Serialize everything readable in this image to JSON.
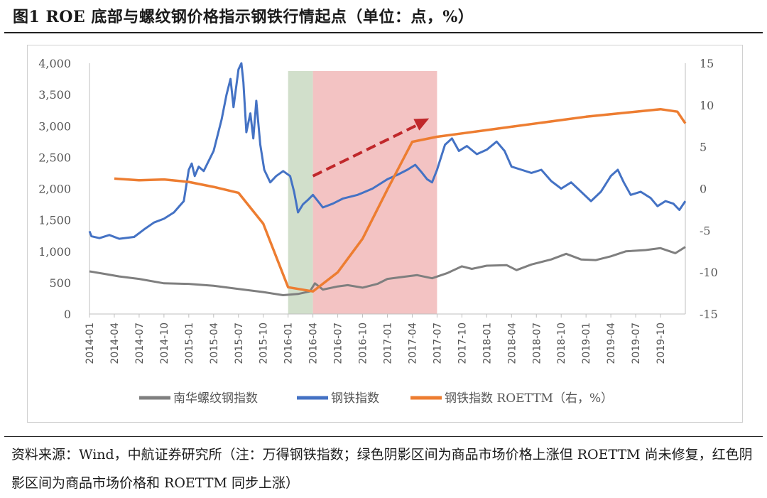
{
  "figure": {
    "title": "图1  ROE 底部与螺纹钢价格指示钢铁行情起点（单位：点，%）",
    "source": "资料来源：Wind，中航证券研究所（注：万得钢铁指数；绿色阴影区间为商品市场价格上涨但 ROETTM 尚未修复，红色阴影区间为商品市场价格和 ROETTM 同步上涨）"
  },
  "chart_data": {
    "type": "line",
    "x_ticks": [
      "2014-01",
      "2014-04",
      "2014-07",
      "2014-10",
      "2015-01",
      "2015-04",
      "2015-07",
      "2015-10",
      "2016-01",
      "2016-04",
      "2016-07",
      "2016-10",
      "2017-01",
      "2017-04",
      "2017-07",
      "2017-10",
      "2018-01",
      "2018-04",
      "2018-07",
      "2018-10",
      "2019-01",
      "2019-04",
      "2019-07",
      "2019-10"
    ],
    "y_left": {
      "ticks": [
        "0",
        "500",
        "1,000",
        "1,500",
        "2,000",
        "2,500",
        "3,000",
        "3,500",
        "4,000"
      ],
      "range": [
        0,
        4000
      ]
    },
    "y_right": {
      "ticks": [
        "-15",
        "-10",
        "-5",
        "0",
        "5",
        "10",
        "15"
      ],
      "range": [
        -15,
        15
      ]
    },
    "x_range": [
      2014.0,
      2020.0
    ],
    "shaded_regions": [
      {
        "from": 2016.0,
        "to": 2016.25,
        "color": "#c9d9c2"
      },
      {
        "from": 2016.25,
        "to": 2017.5,
        "color": "#f1b8b8"
      }
    ],
    "arrow": {
      "from": [
        2016.25,
        1.5
      ],
      "to": [
        2017.42,
        8.4
      ],
      "color": "#c0282b",
      "axis": "right"
    },
    "series": [
      {
        "name": "南华螺纹钢指数",
        "axis": "left",
        "color": "#7f7f7f",
        "points": [
          [
            2014.0,
            680
          ],
          [
            2014.15,
            640
          ],
          [
            2014.3,
            600
          ],
          [
            2014.5,
            560
          ],
          [
            2014.75,
            490
          ],
          [
            2015.0,
            480
          ],
          [
            2015.25,
            450
          ],
          [
            2015.5,
            400
          ],
          [
            2015.75,
            350
          ],
          [
            2015.95,
            300
          ],
          [
            2016.1,
            320
          ],
          [
            2016.22,
            360
          ],
          [
            2016.27,
            490
          ],
          [
            2016.35,
            390
          ],
          [
            2016.5,
            440
          ],
          [
            2016.6,
            460
          ],
          [
            2016.75,
            420
          ],
          [
            2016.9,
            480
          ],
          [
            2017.0,
            560
          ],
          [
            2017.15,
            590
          ],
          [
            2017.3,
            620
          ],
          [
            2017.45,
            570
          ],
          [
            2017.6,
            650
          ],
          [
            2017.75,
            760
          ],
          [
            2017.85,
            720
          ],
          [
            2018.0,
            770
          ],
          [
            2018.2,
            780
          ],
          [
            2018.3,
            700
          ],
          [
            2018.45,
            790
          ],
          [
            2018.65,
            870
          ],
          [
            2018.8,
            960
          ],
          [
            2018.95,
            870
          ],
          [
            2019.1,
            860
          ],
          [
            2019.25,
            920
          ],
          [
            2019.4,
            1000
          ],
          [
            2019.6,
            1020
          ],
          [
            2019.75,
            1050
          ],
          [
            2019.9,
            970
          ],
          [
            2020.0,
            1070
          ]
        ]
      },
      {
        "name": "钢铁指数",
        "axis": "left",
        "color": "#4472c4",
        "points": [
          [
            2014.0,
            1320
          ],
          [
            2014.02,
            1240
          ],
          [
            2014.1,
            1210
          ],
          [
            2014.2,
            1260
          ],
          [
            2014.3,
            1200
          ],
          [
            2014.45,
            1230
          ],
          [
            2014.55,
            1350
          ],
          [
            2014.65,
            1460
          ],
          [
            2014.75,
            1520
          ],
          [
            2014.85,
            1620
          ],
          [
            2014.95,
            1800
          ],
          [
            2015.0,
            2300
          ],
          [
            2015.03,
            2400
          ],
          [
            2015.06,
            2200
          ],
          [
            2015.1,
            2350
          ],
          [
            2015.15,
            2280
          ],
          [
            2015.25,
            2600
          ],
          [
            2015.33,
            3100
          ],
          [
            2015.38,
            3500
          ],
          [
            2015.42,
            3750
          ],
          [
            2015.45,
            3300
          ],
          [
            2015.5,
            3900
          ],
          [
            2015.53,
            4000
          ],
          [
            2015.55,
            3700
          ],
          [
            2015.58,
            2900
          ],
          [
            2015.62,
            3200
          ],
          [
            2015.65,
            2800
          ],
          [
            2015.68,
            3400
          ],
          [
            2015.72,
            2700
          ],
          [
            2015.76,
            2300
          ],
          [
            2015.82,
            2100
          ],
          [
            2015.88,
            2200
          ],
          [
            2015.95,
            2280
          ],
          [
            2016.02,
            2200
          ],
          [
            2016.06,
            1950
          ],
          [
            2016.1,
            1620
          ],
          [
            2016.15,
            1750
          ],
          [
            2016.2,
            1820
          ],
          [
            2016.25,
            1900
          ],
          [
            2016.3,
            1800
          ],
          [
            2016.35,
            1700
          ],
          [
            2016.45,
            1760
          ],
          [
            2016.55,
            1840
          ],
          [
            2016.7,
            1900
          ],
          [
            2016.85,
            2000
          ],
          [
            2017.0,
            2150
          ],
          [
            2017.1,
            2220
          ],
          [
            2017.2,
            2300
          ],
          [
            2017.28,
            2380
          ],
          [
            2017.35,
            2250
          ],
          [
            2017.4,
            2150
          ],
          [
            2017.45,
            2100
          ],
          [
            2017.5,
            2300
          ],
          [
            2017.58,
            2700
          ],
          [
            2017.65,
            2800
          ],
          [
            2017.72,
            2600
          ],
          [
            2017.8,
            2680
          ],
          [
            2017.9,
            2550
          ],
          [
            2018.0,
            2620
          ],
          [
            2018.1,
            2750
          ],
          [
            2018.18,
            2600
          ],
          [
            2018.25,
            2350
          ],
          [
            2018.35,
            2300
          ],
          [
            2018.45,
            2250
          ],
          [
            2018.55,
            2300
          ],
          [
            2018.65,
            2120
          ],
          [
            2018.75,
            2000
          ],
          [
            2018.85,
            2100
          ],
          [
            2018.95,
            1950
          ],
          [
            2019.05,
            1800
          ],
          [
            2019.15,
            1950
          ],
          [
            2019.25,
            2200
          ],
          [
            2019.32,
            2300
          ],
          [
            2019.38,
            2100
          ],
          [
            2019.45,
            1900
          ],
          [
            2019.55,
            1950
          ],
          [
            2019.65,
            1850
          ],
          [
            2019.72,
            1720
          ],
          [
            2019.8,
            1800
          ],
          [
            2019.88,
            1760
          ],
          [
            2019.94,
            1660
          ],
          [
            2020.0,
            1800
          ]
        ]
      },
      {
        "name": "钢铁指数 ROETTM（右，%）",
        "axis": "right",
        "color": "#ed7d31",
        "points": [
          [
            2014.25,
            1.2
          ],
          [
            2014.5,
            1.0
          ],
          [
            2014.75,
            1.1
          ],
          [
            2015.0,
            0.8
          ],
          [
            2015.25,
            0.2
          ],
          [
            2015.5,
            -0.5
          ],
          [
            2015.75,
            -4.2
          ],
          [
            2016.0,
            -11.8
          ],
          [
            2016.25,
            -12.3
          ],
          [
            2016.5,
            -10.0
          ],
          [
            2016.75,
            -6.0
          ],
          [
            2017.0,
            -0.1
          ],
          [
            2017.25,
            5.6
          ],
          [
            2017.5,
            6.2
          ],
          [
            2017.75,
            6.6
          ],
          [
            2018.0,
            7.0
          ],
          [
            2018.25,
            7.4
          ],
          [
            2018.5,
            7.8
          ],
          [
            2018.75,
            8.2
          ],
          [
            2019.0,
            8.6
          ],
          [
            2019.25,
            8.9
          ],
          [
            2019.5,
            9.2
          ],
          [
            2019.75,
            9.5
          ],
          [
            2019.92,
            9.2
          ],
          [
            2020.0,
            7.8
          ]
        ]
      }
    ]
  }
}
